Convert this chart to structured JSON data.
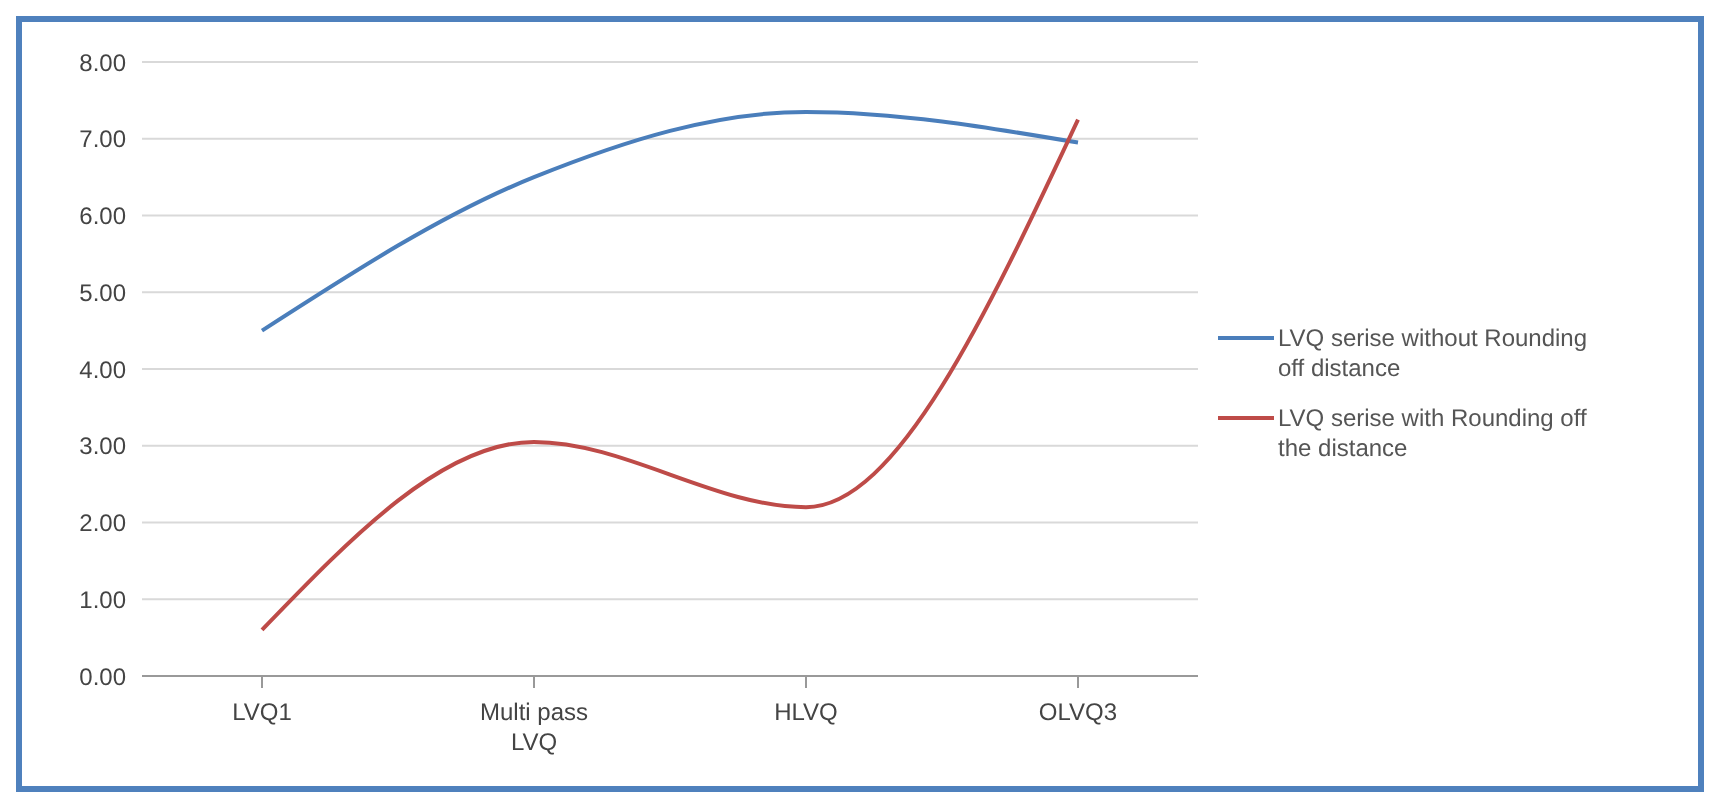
{
  "chart_data": {
    "type": "line",
    "categories": [
      "LVQ1",
      "Multi pass LVQ",
      "HLVQ",
      "OLVQ3"
    ],
    "series": [
      {
        "name": "LVQ serise without Rounding off distance",
        "color": "#4a7ebb",
        "values": [
          4.5,
          6.5,
          7.35,
          6.95
        ]
      },
      {
        "name": "LVQ serise with Rounding off the distance",
        "color": "#be4b48",
        "values": [
          0.6,
          3.05,
          2.2,
          7.25
        ]
      }
    ],
    "ylim": [
      0,
      8
    ],
    "yticks": [
      {
        "value": 0,
        "label": "0.00"
      },
      {
        "value": 1,
        "label": "1.00"
      },
      {
        "value": 2,
        "label": "2.00"
      },
      {
        "value": 3,
        "label": "3.00"
      },
      {
        "value": 4,
        "label": "4.00"
      },
      {
        "value": 5,
        "label": "5.00"
      },
      {
        "value": 6,
        "label": "6.00"
      },
      {
        "value": 7,
        "label": "7.00"
      },
      {
        "value": 8,
        "label": "8.00"
      }
    ],
    "grid": "y",
    "legend": "right",
    "marker": "none",
    "line_style": "solid"
  }
}
